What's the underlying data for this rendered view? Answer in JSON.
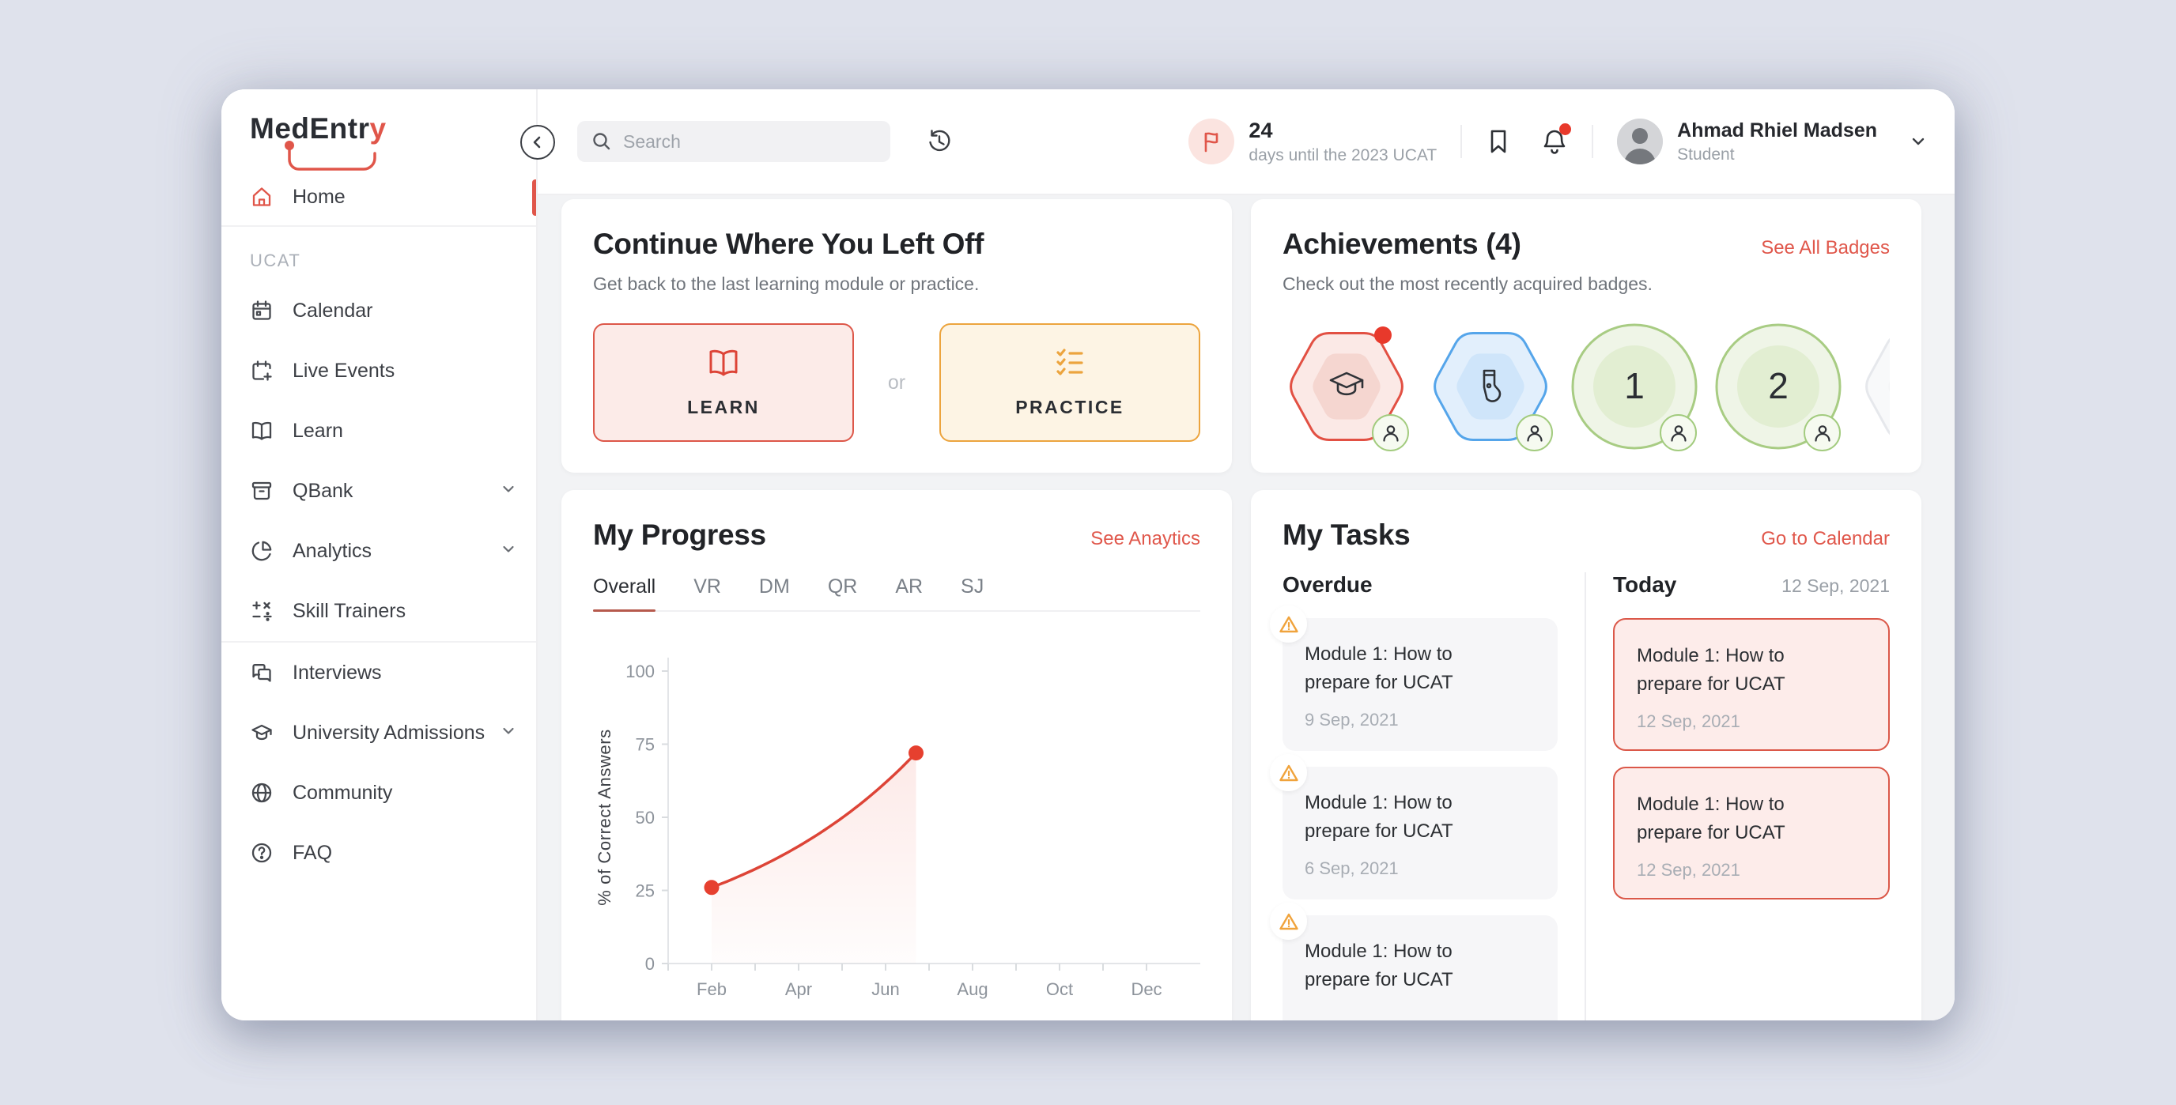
{
  "theme": {
    "accent_red": "#e0564a",
    "bright_red": "#e8392b",
    "orange": "#eca43e",
    "blue": "#55a5ea",
    "green": "#a2cb7e",
    "page_bg": "#dfe2ec",
    "content_bg": "#f2f3f5"
  },
  "sidebar": {
    "logo": {
      "text_dark": "MedEntr",
      "text_red": "y"
    },
    "sections": [
      {
        "label": "",
        "items": [
          {
            "label": "Home",
            "icon": "home",
            "active": true
          }
        ]
      },
      {
        "label": "UCAT",
        "items": [
          {
            "label": "Calendar",
            "icon": "calendar"
          },
          {
            "label": "Live Events",
            "icon": "calendar-plus"
          },
          {
            "label": "Learn",
            "icon": "book-open"
          },
          {
            "label": "QBank",
            "icon": "archive",
            "expandable": true
          },
          {
            "label": "Analytics",
            "icon": "pie-chart",
            "expandable": true
          },
          {
            "label": "Skill Trainers",
            "icon": "math-operations"
          }
        ]
      },
      {
        "label": "",
        "items": [
          {
            "label": "Interviews",
            "icon": "chat-bubbles"
          },
          {
            "label": "University Admissions",
            "icon": "graduation-cap",
            "expandable": true
          },
          {
            "label": "Community",
            "icon": "globe"
          },
          {
            "label": "FAQ",
            "icon": "help-circle"
          }
        ]
      }
    ]
  },
  "topbar": {
    "search_placeholder": "Search",
    "countdown": {
      "number": "24",
      "caption": "days until the 2023 UCAT"
    },
    "user": {
      "name": "Ahmad Rhiel Madsen",
      "role": "Student"
    }
  },
  "continue_card": {
    "title": "Continue Where You Left Off",
    "subtitle": "Get back to the last learning module or practice.",
    "learn_label": "LEARN",
    "or_label": "or",
    "practice_label": "PRACTICE"
  },
  "achievements": {
    "title": "Achievements (4)",
    "link": "See All Badges",
    "subtitle": "Check out the most recently acquired badges.",
    "badges": [
      {
        "name": "graduation-cap-badge",
        "shape": "hexagon",
        "icon": "graduation-cap",
        "border": "#e25043",
        "fill": "#fbe9e6",
        "inner": "#f5d6d0",
        "notification": true,
        "sub_badge": true
      },
      {
        "name": "sock-badge",
        "shape": "hexagon",
        "icon": "sock",
        "border": "#55a5ea",
        "fill": "#e2effc",
        "inner": "#cfe5fa",
        "sub_badge": true
      },
      {
        "name": "level-1-badge",
        "shape": "circle",
        "label": "1",
        "border": "#a8cc83",
        "fill": "#eff5e7",
        "inner": "#e2eed2",
        "sub_badge": true
      },
      {
        "name": "level-2-badge",
        "shape": "circle",
        "label": "2",
        "border": "#a8cc83",
        "fill": "#eff5e7",
        "inner": "#e2eed2",
        "sub_badge": true
      },
      {
        "name": "locked-badge",
        "shape": "hexagon",
        "label": "?",
        "border": "#e6e8ec",
        "fill": "#f8f9fa",
        "inner": "#f3f4f6",
        "sub_badge": true
      }
    ]
  },
  "progress": {
    "title": "My Progress",
    "link": "See Anaytics",
    "tabs": [
      "Overall",
      "VR",
      "DM",
      "QR",
      "AR",
      "SJ"
    ],
    "active_tab": "Overall"
  },
  "chart_data": {
    "type": "area",
    "title": "My Progress — Overall",
    "ylabel": "% of Correct Answers",
    "ylim": [
      0,
      100
    ],
    "yticks": [
      0,
      25,
      50,
      75,
      100
    ],
    "x_months_range": [
      1,
      12
    ],
    "x_tick_labels": [
      "Feb",
      "Apr",
      "Jun",
      "Aug",
      "Oct",
      "Dec"
    ],
    "grid": false,
    "legend": "none",
    "series": [
      {
        "name": "Overall",
        "interpolation": "exponential",
        "color": "#dd4437",
        "fill_top": "rgba(240,122,110,0.16)",
        "fill_bottom": "rgba(240,122,110,0.02)",
        "points": [
          {
            "month": 2,
            "value": 26
          },
          {
            "month": 6.7,
            "value": 72
          }
        ]
      }
    ]
  },
  "tasks": {
    "title": "My Tasks",
    "link": "Go to Calendar",
    "overdue": {
      "header": "Overdue",
      "items": [
        {
          "title": "Module 1: How to prepare for UCAT",
          "date": "9 Sep, 2021"
        },
        {
          "title": "Module 1: How to prepare for UCAT",
          "date": "6 Sep, 2021"
        },
        {
          "title": "Module 1: How to prepare for UCAT"
        }
      ]
    },
    "today": {
      "header": "Today",
      "date": "12 Sep, 2021",
      "items": [
        {
          "title": "Module 1: How to prepare for UCAT",
          "date": "12 Sep, 2021"
        },
        {
          "title": "Module 1: How to prepare for UCAT",
          "date": "12 Sep, 2021"
        }
      ]
    }
  }
}
